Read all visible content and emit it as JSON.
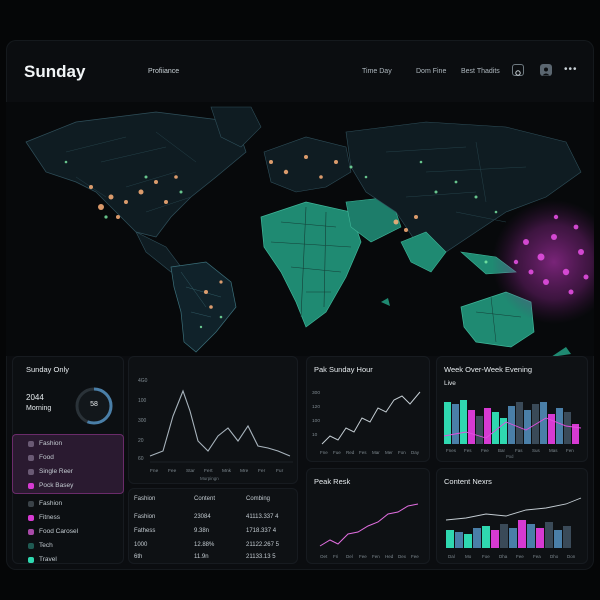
{
  "header": {
    "title": "Sunday",
    "profile_label": "Profiiance",
    "links": [
      "Time Day",
      "Dom Fine",
      "Best Thadits"
    ]
  },
  "icons": [
    "target-icon",
    "user-icon",
    "more-icon"
  ],
  "sunday_only": {
    "title": "Sunday Only",
    "time": "2044",
    "period": "Morning",
    "gauge_value": "58",
    "categories": [
      "Fashion",
      "Food",
      "Single Reer",
      "Pock Basey"
    ],
    "lower_categories": [
      "Fashion",
      "Fitness",
      "Food Carosel",
      "Tech",
      "Travel"
    ]
  },
  "center_chart": {
    "y_labels": [
      "4G0",
      "100",
      "300",
      "20",
      "60"
    ],
    "x_labels": [
      "Fne",
      "Fee",
      "Star",
      "Fert",
      "Mnk",
      "Mre",
      "Fer",
      "Fur"
    ],
    "x_title": "Murpingn"
  },
  "table": {
    "headers": [
      "Fashion",
      "Content",
      "Combing"
    ],
    "rows": [
      [
        "Fashion",
        "23084",
        "41113.337 4"
      ],
      [
        "Fathess",
        "9.38n",
        "1718.337 4"
      ],
      [
        "1000",
        "12.88%",
        "21122.267 5"
      ],
      [
        "6th",
        "11.9n",
        "21133.13 5"
      ]
    ]
  },
  "peak_hour": {
    "title": "Pak Sunday Hour",
    "y_labels": [
      "300",
      "120",
      "100",
      "10"
    ],
    "x_labels": [
      "Fne",
      "Fue",
      "Red",
      "Fes",
      "Mar",
      "Mer",
      "Fon",
      "Day"
    ]
  },
  "week_over_week": {
    "title": "Week Over-Week Evening",
    "live_label": "Live",
    "x_labels": [
      "Fnes",
      "Fes",
      "Fee",
      "Bar",
      "Fas",
      "Sus",
      "Mas",
      "Fen"
    ],
    "x_sublabel": "Pod"
  },
  "peak_resk": {
    "title": "Peak Resk",
    "x_labels": [
      "Oet",
      "Fri",
      "Del",
      "Fee",
      "Fen",
      "Hed",
      "Dex",
      "Fee"
    ]
  },
  "content_news": {
    "title": "Content Nexrs",
    "x_labels": [
      "Dal",
      "Mo",
      "Foe",
      "Dha",
      "Fee",
      "Fea",
      "Dho",
      "Don"
    ]
  },
  "colors": {
    "accent_teal": "#2fd8b0",
    "accent_magenta": "#d63ad2",
    "accent_blue": "#4a7fa8",
    "bg": "#0b0d10"
  }
}
